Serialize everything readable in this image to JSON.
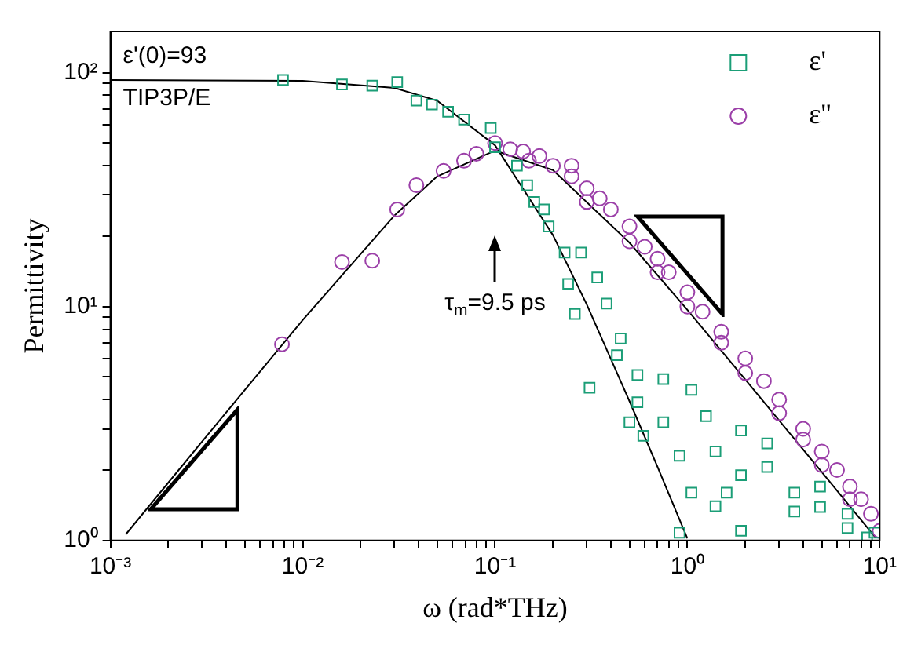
{
  "chart_data": {
    "type": "scatter",
    "xlabel": "ω (rad*THz)",
    "ylabel": "Permittivity",
    "log": "xy",
    "grid": false,
    "legend": "top right",
    "xlim": [
      0.001,
      10
    ],
    "ylim": [
      1,
      150
    ],
    "xticks": [
      {
        "value": 0.001,
        "label": "10⁻³"
      },
      {
        "value": 0.002,
        "label": null
      },
      {
        "value": 0.003,
        "label": null
      },
      {
        "value": 0.004,
        "label": null
      },
      {
        "value": 0.005,
        "label": null
      },
      {
        "value": 0.006,
        "label": null
      },
      {
        "value": 0.007,
        "label": null
      },
      {
        "value": 0.008,
        "label": null
      },
      {
        "value": 0.009,
        "label": null
      },
      {
        "value": 0.01,
        "label": "10⁻²"
      },
      {
        "value": 0.02,
        "label": null
      },
      {
        "value": 0.03,
        "label": null
      },
      {
        "value": 0.04,
        "label": null
      },
      {
        "value": 0.05,
        "label": null
      },
      {
        "value": 0.06,
        "label": null
      },
      {
        "value": 0.07,
        "label": null
      },
      {
        "value": 0.08,
        "label": null
      },
      {
        "value": 0.09,
        "label": null
      },
      {
        "value": 0.1,
        "label": "10⁻¹"
      },
      {
        "value": 0.2,
        "label": null
      },
      {
        "value": 0.3,
        "label": null
      },
      {
        "value": 0.4,
        "label": null
      },
      {
        "value": 0.5,
        "label": null
      },
      {
        "value": 0.6,
        "label": null
      },
      {
        "value": 0.7,
        "label": null
      },
      {
        "value": 0.8,
        "label": null
      },
      {
        "value": 0.9,
        "label": null
      },
      {
        "value": 1,
        "label": "10⁰"
      },
      {
        "value": 2,
        "label": null
      },
      {
        "value": 3,
        "label": null
      },
      {
        "value": 4,
        "label": null
      },
      {
        "value": 5,
        "label": null
      },
      {
        "value": 6,
        "label": null
      },
      {
        "value": 7,
        "label": null
      },
      {
        "value": 8,
        "label": null
      },
      {
        "value": 9,
        "label": null
      },
      {
        "value": 10,
        "label": "10¹"
      }
    ],
    "yticks": [
      {
        "value": 1,
        "label": "10⁰"
      },
      {
        "value": 2,
        "label": null
      },
      {
        "value": 3,
        "label": null
      },
      {
        "value": 4,
        "label": null
      },
      {
        "value": 5,
        "label": null
      },
      {
        "value": 6,
        "label": null
      },
      {
        "value": 7,
        "label": null
      },
      {
        "value": 8,
        "label": null
      },
      {
        "value": 9,
        "label": null
      },
      {
        "value": 10,
        "label": "10¹"
      },
      {
        "value": 20,
        "label": null
      },
      {
        "value": 30,
        "label": null
      },
      {
        "value": 40,
        "label": null
      },
      {
        "value": 50,
        "label": null
      },
      {
        "value": 60,
        "label": null
      },
      {
        "value": 70,
        "label": null
      },
      {
        "value": 80,
        "label": null
      },
      {
        "value": 90,
        "label": null
      },
      {
        "value": 100,
        "label": "10²"
      }
    ],
    "annotations": [
      "ε'(0)=93",
      "TIP3P/E",
      "τ$_{m}$=9.5 ps"
    ],
    "series": [
      {
        "name": "ε'",
        "marker": "square",
        "color": "#1b9e77",
        "x": [
          0.0079,
          0.016,
          0.023,
          0.031,
          0.039,
          0.047,
          0.057,
          0.069,
          0.095,
          0.1,
          0.13,
          0.147,
          0.16,
          0.18,
          0.19,
          0.23,
          0.24,
          0.26,
          0.28,
          0.31,
          0.34,
          0.38,
          0.43,
          0.45,
          0.55,
          0.55,
          0.5,
          0.59,
          0.75,
          0.75,
          0.91,
          0.91,
          1.05,
          1.05,
          1.25,
          1.4,
          1.4,
          1.6,
          1.9,
          1.9,
          1.9,
          2.6,
          2.6,
          3.6,
          3.6,
          4.9,
          4.9,
          6.8,
          6.8,
          8.6,
          9.4
        ],
        "values": [
          93,
          89,
          88,
          91,
          76,
          73,
          68,
          63,
          58,
          48,
          40,
          33,
          28,
          26,
          22,
          17,
          12.5,
          9.3,
          17,
          4.5,
          13.3,
          10.3,
          6.2,
          7.3,
          5.1,
          3.9,
          3.2,
          2.8,
          4.9,
          3.2,
          2.3,
          1.08,
          4.4,
          1.6,
          3.4,
          2.4,
          1.4,
          1.6,
          2.95,
          1.9,
          1.1,
          2.06,
          2.6,
          1.6,
          1.33,
          1.39,
          1.7,
          1.13,
          1.3,
          1.03,
          1.08
        ]
      },
      {
        "name": "ε''",
        "marker": "circle",
        "color": "#9b3fa8",
        "x": [
          0.0078,
          0.016,
          0.023,
          0.031,
          0.039,
          0.054,
          0.069,
          0.08,
          0.1,
          0.12,
          0.14,
          0.15,
          0.17,
          0.2,
          0.25,
          0.25,
          0.3,
          0.3,
          0.35,
          0.4,
          0.5,
          0.5,
          0.6,
          0.7,
          0.7,
          0.8,
          1,
          1,
          1.2,
          1.5,
          1.5,
          2,
          2,
          2.5,
          3,
          3,
          4,
          4,
          5,
          5,
          6,
          7,
          7,
          8,
          9,
          10
        ],
        "values": [
          6.9,
          15.5,
          15.7,
          26,
          33,
          38,
          42,
          45,
          50,
          47,
          46,
          42,
          44,
          40,
          36,
          40,
          32,
          28,
          29,
          26,
          22,
          19,
          18,
          16,
          14,
          14,
          11.5,
          10,
          9.5,
          7.8,
          7,
          6,
          5.2,
          4.8,
          4,
          3.5,
          3,
          2.7,
          2.4,
          2.1,
          2,
          1.7,
          1.5,
          1.5,
          1.3,
          1.1
        ]
      },
      {
        "type": "line",
        "marker": "none",
        "color": "#000000",
        "x": [
          0.001,
          0.01,
          0.03,
          0.05,
          0.1,
          0.2,
          0.3,
          0.5,
          0.7,
          1
        ],
        "values": [
          93,
          92.2,
          86,
          75.9,
          48.9,
          20.2,
          10.2,
          3.94,
          2.06,
          1.02
        ]
      },
      {
        "type": "line",
        "marker": "none",
        "color": "#000000",
        "x": [
          0.0012,
          0.003,
          0.01,
          0.03,
          0.05,
          0.1,
          0.2,
          0.5,
          1,
          2,
          5,
          9.5
        ],
        "values": [
          1.06,
          2.65,
          8.76,
          24.5,
          36,
          46.4,
          38.3,
          18.75,
          9.68,
          4.88,
          1.96,
          1.03
        ]
      }
    ]
  }
}
